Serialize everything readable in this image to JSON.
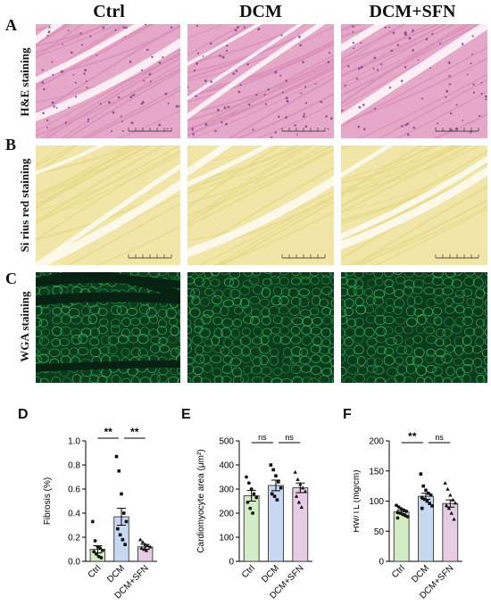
{
  "columns": [
    "Ctrl",
    "DCM",
    "DCM+SFN"
  ],
  "rows": [
    {
      "letter": "A",
      "label": "H&E staining"
    },
    {
      "letter": "B",
      "label": "Si rius  red staining"
    },
    {
      "letter": "C",
      "label": "WGA staining"
    }
  ],
  "colors": {
    "he_bg": "#e6a8c8",
    "he_fiber": "#d98fb8",
    "he_gap": "#fbeef5",
    "sr_bg": "#f1e6a8",
    "sr_fiber": "#e8d98a",
    "sr_gap": "#fdf9ea",
    "wga_bg": "#0c3a1c",
    "wga_line": "#3fd36b",
    "ctrl_bar": "#d4ecc6",
    "dcm_bar": "#c7d8f2",
    "sfn_bar": "#e6cde3"
  },
  "chart_data": [
    {
      "letter": "D",
      "type": "bar",
      "categories": [
        "Ctrl",
        "DCM",
        "DCM+SFN"
      ],
      "values": [
        0.1,
        0.37,
        0.12
      ],
      "errors": [
        0.03,
        0.07,
        0.02
      ],
      "points": [
        [
          0.33,
          0.17,
          0.12,
          0.11,
          0.09,
          0.08,
          0.06,
          0.04,
          0.03
        ],
        [
          0.87,
          0.75,
          0.56,
          0.4,
          0.33,
          0.27,
          0.22,
          0.18,
          0.14
        ],
        [
          0.18,
          0.16,
          0.14,
          0.13,
          0.12,
          0.11,
          0.1,
          0.09
        ]
      ],
      "markers": [
        "circle",
        "square",
        "triangle"
      ],
      "ylabel": "Fibrosis (%)",
      "ylim": [
        0,
        1.0
      ],
      "yticks": [
        "0.0",
        "0.2",
        "0.4",
        "0.6",
        "0.8",
        "1.0"
      ],
      "significance": [
        "**",
        "**"
      ]
    },
    {
      "letter": "E",
      "type": "bar",
      "categories": [
        "Ctrl",
        "DCM",
        "DCM+SFN"
      ],
      "values": [
        272,
        315,
        305
      ],
      "errors": [
        22,
        22,
        20
      ],
      "points": [
        [
          350,
          325,
          300,
          280,
          265,
          245,
          220,
          200
        ],
        [
          400,
          380,
          355,
          330,
          305,
          280,
          270,
          255
        ],
        [
          370,
          340,
          320,
          305,
          290,
          270,
          245,
          225
        ]
      ],
      "markers": [
        "circle",
        "square",
        "triangle"
      ],
      "ylabel": "Cardiomyocyte area (μm²)",
      "ylim": [
        0,
        500
      ],
      "yticks": [
        "0",
        "100",
        "200",
        "300",
        "400",
        "500"
      ],
      "significance": [
        "ns",
        "ns"
      ]
    },
    {
      "letter": "F",
      "type": "bar",
      "categories": [
        "Ctrl",
        "DCM",
        "DCM+SFN"
      ],
      "values": [
        82,
        108,
        96
      ],
      "errors": [
        3,
        5,
        6
      ],
      "points": [
        [
          93,
          90,
          87,
          85,
          83,
          81,
          80,
          78,
          76,
          74,
          72
        ],
        [
          145,
          125,
          118,
          113,
          110,
          106,
          103,
          100,
          96,
          92,
          88
        ],
        [
          130,
          120,
          110,
          102,
          97,
          93,
          88,
          80,
          70
        ]
      ],
      "markers": [
        "circle",
        "square",
        "triangle"
      ],
      "ylabel": "HW/TL (mg/cm)",
      "ylim": [
        0,
        200
      ],
      "yticks": [
        "0",
        "50",
        "100",
        "150",
        "200"
      ],
      "significance": [
        "**",
        "ns"
      ]
    }
  ]
}
